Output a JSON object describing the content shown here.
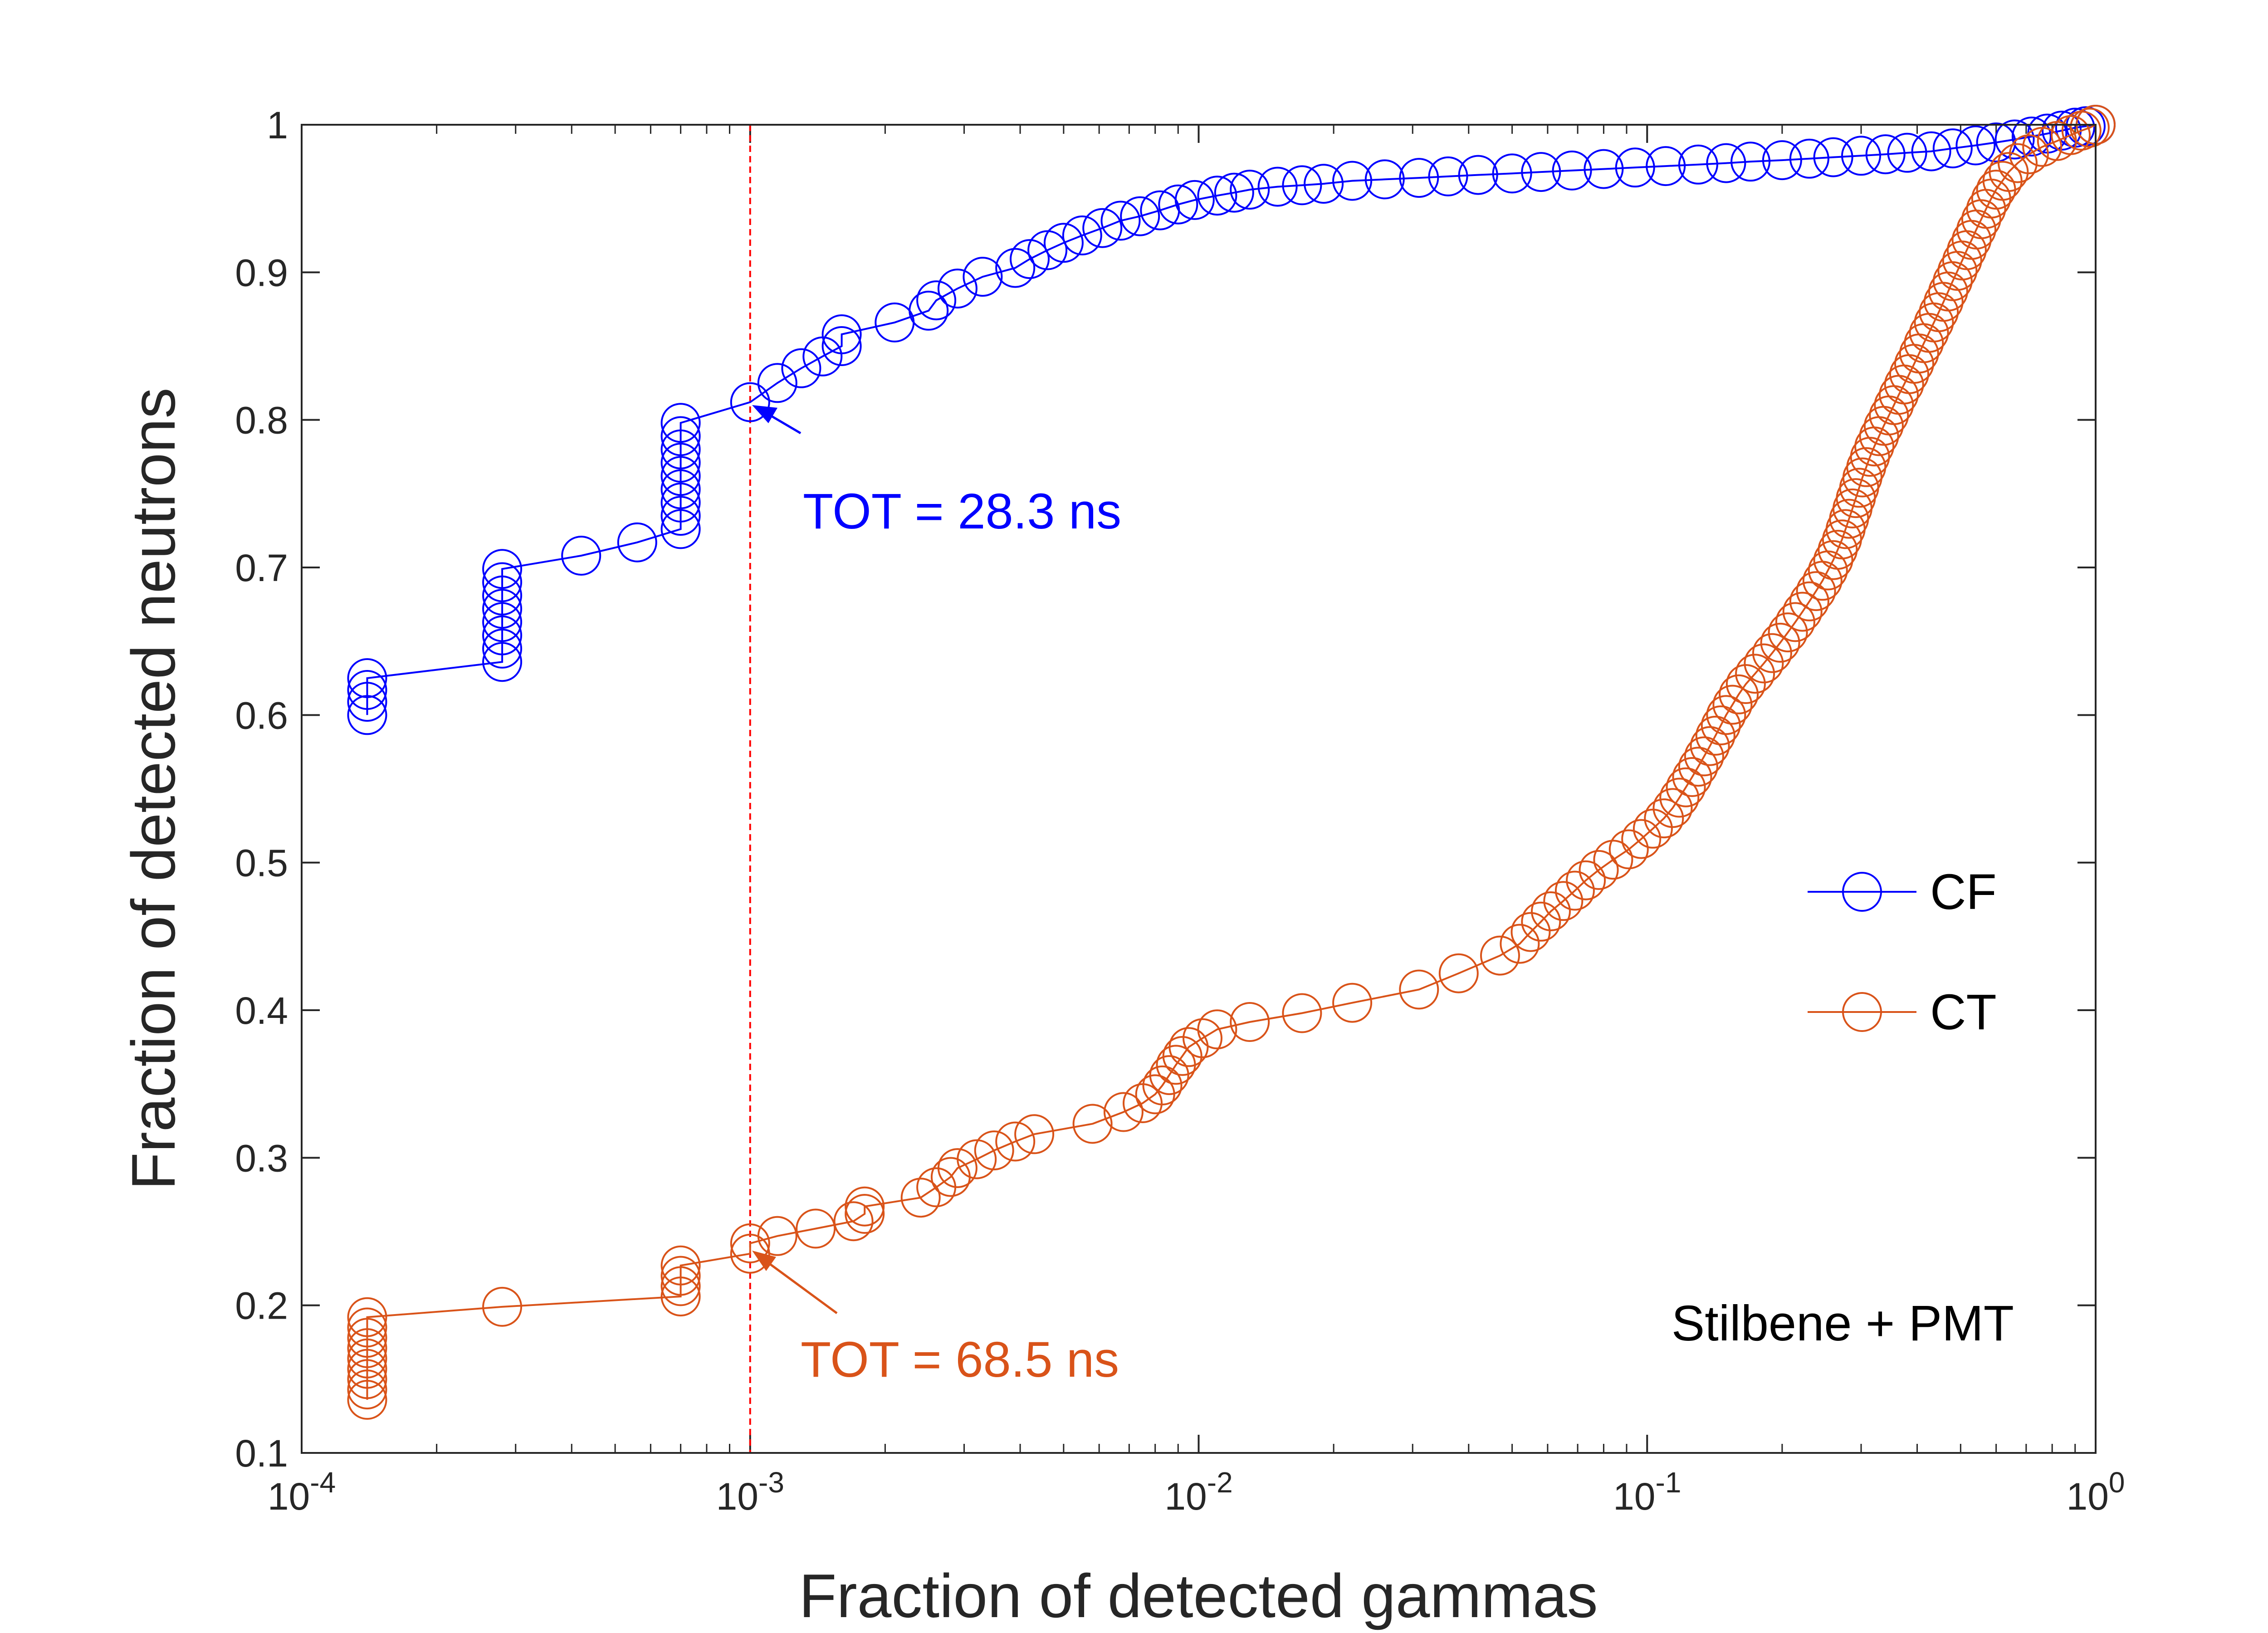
{
  "chart_data": {
    "type": "scatter",
    "xscale": "log",
    "xlabel": "Fraction of detected gammas",
    "ylabel": "Fraction of detected neutrons",
    "xlim": [
      0.0001,
      1
    ],
    "ylim": [
      0.1,
      1
    ],
    "xticks": [
      {
        "value": 0.0001,
        "base": "10",
        "exp": "-4"
      },
      {
        "value": 0.001,
        "base": "10",
        "exp": "-3"
      },
      {
        "value": 0.01,
        "base": "10",
        "exp": "-2"
      },
      {
        "value": 0.1,
        "base": "10",
        "exp": "-1"
      },
      {
        "value": 1,
        "base": "10",
        "exp": "0"
      }
    ],
    "yticks": [
      0.1,
      0.2,
      0.3,
      0.4,
      0.5,
      0.6,
      0.7,
      0.8,
      0.9,
      1
    ],
    "ytick_labels": [
      "0.1",
      "0.2",
      "0.3",
      "0.4",
      "0.5",
      "0.6",
      "0.7",
      "0.8",
      "0.9",
      "1"
    ],
    "grid": false,
    "legend_position": "right-middle",
    "threshold_line_x": 0.001,
    "series": [
      {
        "name": "CF",
        "color": "#0000FF",
        "marker": "open-circle",
        "points": [
          [
            0.00014,
            0.6
          ],
          [
            0.00014,
            0.609
          ],
          [
            0.00014,
            0.617
          ],
          [
            0.00014,
            0.625
          ],
          [
            0.00028,
            0.636
          ],
          [
            0.00028,
            0.645
          ],
          [
            0.00028,
            0.654
          ],
          [
            0.00028,
            0.663
          ],
          [
            0.00028,
            0.672
          ],
          [
            0.00028,
            0.681
          ],
          [
            0.00028,
            0.69
          ],
          [
            0.00028,
            0.699
          ],
          [
            0.00042,
            0.708
          ],
          [
            0.00056,
            0.717
          ],
          [
            0.0007,
            0.726
          ],
          [
            0.0007,
            0.735
          ],
          [
            0.0007,
            0.744
          ],
          [
            0.0007,
            0.753
          ],
          [
            0.0007,
            0.762
          ],
          [
            0.0007,
            0.771
          ],
          [
            0.0007,
            0.78
          ],
          [
            0.0007,
            0.789
          ],
          [
            0.0007,
            0.798
          ],
          [
            0.001,
            0.812
          ],
          [
            0.00115,
            0.825
          ],
          [
            0.0013,
            0.835
          ],
          [
            0.00145,
            0.843
          ],
          [
            0.0016,
            0.85
          ],
          [
            0.0016,
            0.858
          ],
          [
            0.0021,
            0.866
          ],
          [
            0.0025,
            0.874
          ],
          [
            0.0026,
            0.881
          ],
          [
            0.0029,
            0.889
          ],
          [
            0.0033,
            0.897
          ],
          [
            0.0039,
            0.903
          ],
          [
            0.0042,
            0.909
          ],
          [
            0.0046,
            0.915
          ],
          [
            0.005,
            0.92
          ],
          [
            0.0055,
            0.925
          ],
          [
            0.0061,
            0.93
          ],
          [
            0.0067,
            0.935
          ],
          [
            0.0074,
            0.938
          ],
          [
            0.0082,
            0.942
          ],
          [
            0.009,
            0.946
          ],
          [
            0.0098,
            0.949
          ],
          [
            0.011,
            0.952
          ],
          [
            0.012,
            0.954
          ],
          [
            0.013,
            0.956
          ],
          [
            0.015,
            0.958
          ],
          [
            0.017,
            0.959
          ],
          [
            0.019,
            0.96
          ],
          [
            0.022,
            0.962
          ],
          [
            0.026,
            0.963
          ],
          [
            0.031,
            0.964
          ],
          [
            0.036,
            0.965
          ],
          [
            0.042,
            0.966
          ],
          [
            0.05,
            0.967
          ],
          [
            0.058,
            0.968
          ],
          [
            0.068,
            0.969
          ],
          [
            0.08,
            0.97
          ],
          [
            0.094,
            0.971
          ],
          [
            0.11,
            0.972
          ],
          [
            0.13,
            0.973
          ],
          [
            0.15,
            0.974
          ],
          [
            0.17,
            0.975
          ],
          [
            0.2,
            0.976
          ],
          [
            0.23,
            0.977
          ],
          [
            0.26,
            0.978
          ],
          [
            0.3,
            0.979
          ],
          [
            0.34,
            0.98
          ],
          [
            0.38,
            0.981
          ],
          [
            0.43,
            0.982
          ],
          [
            0.48,
            0.984
          ],
          [
            0.54,
            0.986
          ],
          [
            0.6,
            0.988
          ],
          [
            0.66,
            0.99
          ],
          [
            0.72,
            0.992
          ],
          [
            0.78,
            0.994
          ],
          [
            0.84,
            0.996
          ],
          [
            0.9,
            0.998
          ],
          [
            0.95,
            0.999
          ],
          [
            1.0,
            1.0
          ]
        ]
      },
      {
        "name": "CT",
        "color": "#D95319",
        "marker": "open-circle",
        "points": [
          [
            0.00014,
            0.136
          ],
          [
            0.00014,
            0.143
          ],
          [
            0.00014,
            0.15
          ],
          [
            0.00014,
            0.157
          ],
          [
            0.00014,
            0.164
          ],
          [
            0.00014,
            0.171
          ],
          [
            0.00014,
            0.178
          ],
          [
            0.00014,
            0.185
          ],
          [
            0.00014,
            0.192
          ],
          [
            0.00028,
            0.199
          ],
          [
            0.0007,
            0.206
          ],
          [
            0.0007,
            0.213
          ],
          [
            0.0007,
            0.22
          ],
          [
            0.0007,
            0.227
          ],
          [
            0.001,
            0.235
          ],
          [
            0.001,
            0.242
          ],
          [
            0.00115,
            0.247
          ],
          [
            0.0014,
            0.252
          ],
          [
            0.0017,
            0.257
          ],
          [
            0.0018,
            0.262
          ],
          [
            0.0018,
            0.267
          ],
          [
            0.0024,
            0.273
          ],
          [
            0.0026,
            0.28
          ],
          [
            0.0028,
            0.287
          ],
          [
            0.0029,
            0.293
          ],
          [
            0.0032,
            0.299
          ],
          [
            0.0035,
            0.305
          ],
          [
            0.0039,
            0.311
          ],
          [
            0.0043,
            0.316
          ],
          [
            0.0058,
            0.323
          ],
          [
            0.0068,
            0.331
          ],
          [
            0.0075,
            0.337
          ],
          [
            0.008,
            0.343
          ],
          [
            0.0083,
            0.349
          ],
          [
            0.0086,
            0.356
          ],
          [
            0.0089,
            0.363
          ],
          [
            0.0092,
            0.369
          ],
          [
            0.0095,
            0.375
          ],
          [
            0.0102,
            0.381
          ],
          [
            0.011,
            0.387
          ],
          [
            0.013,
            0.392
          ],
          [
            0.017,
            0.398
          ],
          [
            0.022,
            0.405
          ],
          [
            0.031,
            0.414
          ],
          [
            0.038,
            0.425
          ],
          [
            0.047,
            0.437
          ],
          [
            0.052,
            0.445
          ],
          [
            0.055,
            0.453
          ],
          [
            0.058,
            0.46
          ],
          [
            0.061,
            0.467
          ],
          [
            0.065,
            0.474
          ],
          [
            0.069,
            0.481
          ],
          [
            0.073,
            0.488
          ],
          [
            0.078,
            0.495
          ],
          [
            0.084,
            0.502
          ],
          [
            0.091,
            0.509
          ],
          [
            0.097,
            0.516
          ],
          [
            0.103,
            0.523
          ],
          [
            0.109,
            0.53
          ],
          [
            0.114,
            0.537
          ],
          [
            0.118,
            0.544
          ],
          [
            0.122,
            0.551
          ],
          [
            0.126,
            0.558
          ],
          [
            0.13,
            0.565
          ],
          [
            0.134,
            0.572
          ],
          [
            0.138,
            0.579
          ],
          [
            0.142,
            0.586
          ],
          [
            0.146,
            0.593
          ],
          [
            0.15,
            0.6
          ],
          [
            0.155,
            0.607
          ],
          [
            0.16,
            0.614
          ],
          [
            0.166,
            0.621
          ],
          [
            0.174,
            0.628
          ],
          [
            0.182,
            0.635
          ],
          [
            0.19,
            0.642
          ],
          [
            0.198,
            0.649
          ],
          [
            0.206,
            0.656
          ],
          [
            0.214,
            0.663
          ],
          [
            0.222,
            0.67
          ],
          [
            0.23,
            0.677
          ],
          [
            0.238,
            0.684
          ],
          [
            0.246,
            0.691
          ],
          [
            0.253,
            0.698
          ],
          [
            0.26,
            0.705
          ],
          [
            0.266,
            0.712
          ],
          [
            0.272,
            0.719
          ],
          [
            0.277,
            0.726
          ],
          [
            0.282,
            0.733
          ],
          [
            0.287,
            0.74
          ],
          [
            0.292,
            0.747
          ],
          [
            0.297,
            0.754
          ],
          [
            0.302,
            0.761
          ],
          [
            0.308,
            0.768
          ],
          [
            0.314,
            0.775
          ],
          [
            0.321,
            0.782
          ],
          [
            0.329,
            0.789
          ],
          [
            0.337,
            0.796
          ],
          [
            0.346,
            0.803
          ],
          [
            0.355,
            0.81
          ],
          [
            0.364,
            0.817
          ],
          [
            0.374,
            0.824
          ],
          [
            0.384,
            0.831
          ],
          [
            0.394,
            0.838
          ],
          [
            0.404,
            0.845
          ],
          [
            0.414,
            0.852
          ],
          [
            0.425,
            0.859
          ],
          [
            0.436,
            0.866
          ],
          [
            0.447,
            0.873
          ],
          [
            0.458,
            0.88
          ],
          [
            0.469,
            0.887
          ],
          [
            0.48,
            0.894
          ],
          [
            0.492,
            0.901
          ],
          [
            0.504,
            0.908
          ],
          [
            0.516,
            0.915
          ],
          [
            0.529,
            0.922
          ],
          [
            0.542,
            0.929
          ],
          [
            0.556,
            0.936
          ],
          [
            0.57,
            0.943
          ],
          [
            0.585,
            0.95
          ],
          [
            0.6,
            0.956
          ],
          [
            0.62,
            0.962
          ],
          [
            0.64,
            0.968
          ],
          [
            0.67,
            0.974
          ],
          [
            0.71,
            0.98
          ],
          [
            0.76,
            0.985
          ],
          [
            0.82,
            0.989
          ],
          [
            0.88,
            0.993
          ],
          [
            0.93,
            0.996
          ],
          [
            0.97,
            0.998
          ],
          [
            1.0,
            1.0
          ]
        ]
      }
    ],
    "annotations": [
      {
        "name": "cf",
        "text": "TOT = 28.3 ns",
        "color": "#0000FF",
        "point_x": 0.001,
        "point_y": 0.812
      },
      {
        "name": "ct",
        "text": "TOT = 68.5 ns",
        "color": "#D95319",
        "point_x": 0.001,
        "point_y": 0.238
      }
    ],
    "note": "Stilbene + PMT"
  }
}
